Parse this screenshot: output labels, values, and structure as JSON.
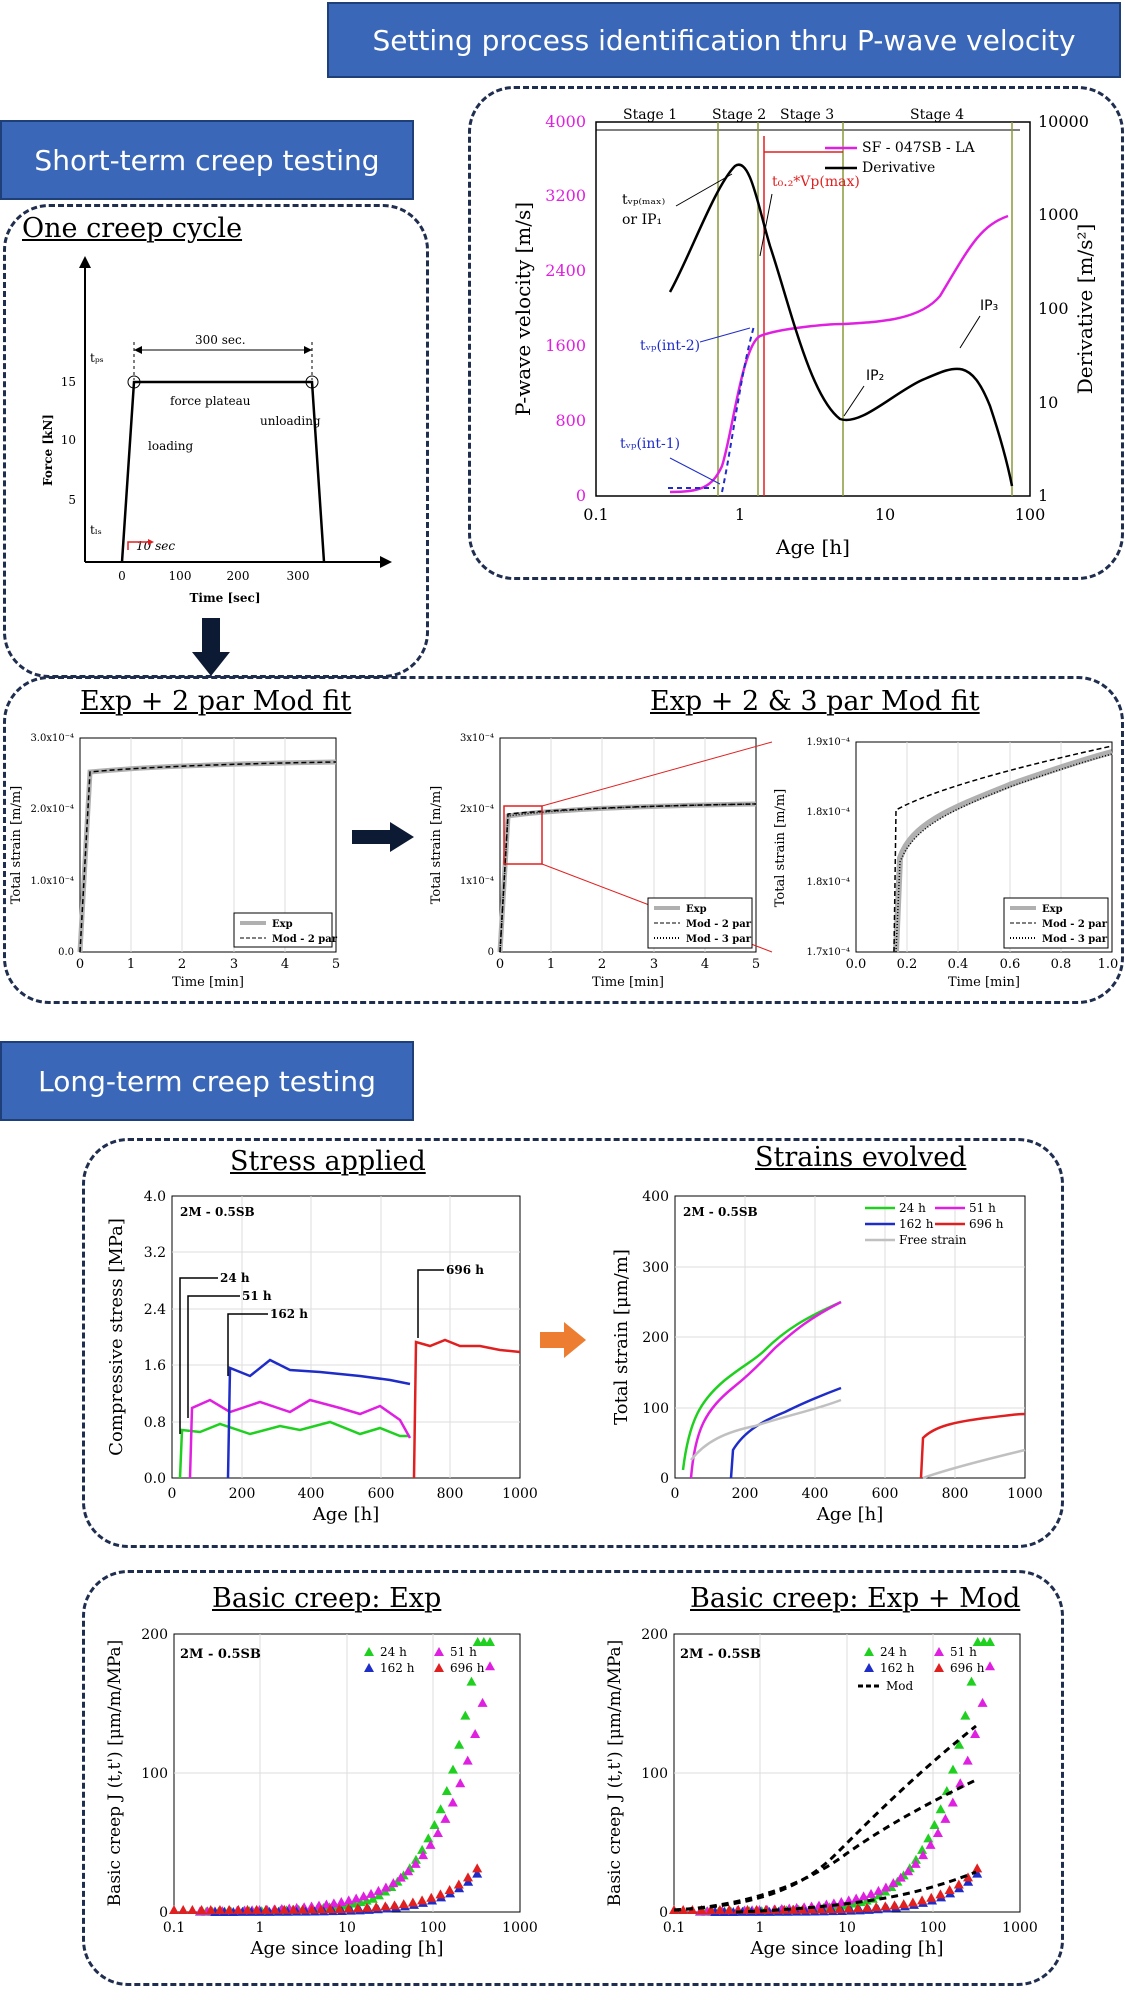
{
  "banners": {
    "top": "Setting process identification thru P-wave velocity",
    "short": "Short-term creep testing",
    "long": "Long-term creep testing"
  },
  "headings": {
    "one_cycle": "One creep cycle",
    "exp2": "Exp + 2 par Mod fit",
    "exp23": "Exp + 2 & 3 par Mod fit",
    "stress": "Stress applied",
    "strains": "Strains evolved",
    "bc_exp": "Basic creep: Exp",
    "bc_mod": "Basic creep: Exp + Mod"
  },
  "pwave": {
    "stages": [
      "Stage 1",
      "Stage 2",
      "Stage 3",
      "Stage 4"
    ],
    "ylabel_left": "P-wave velocity [m/s]",
    "ylabel_right": "Derivative [m/s²]",
    "xlabel": "Age [h]",
    "yticks": [
      "0",
      "800",
      "1600",
      "2400",
      "3200",
      "4000"
    ],
    "yticks_right": [
      "1",
      "10",
      "100",
      "1000",
      "10000"
    ],
    "xticks": [
      "0.1",
      "1",
      "10",
      "100"
    ],
    "legend": [
      "SF - 047SB - LA",
      "Derivative"
    ],
    "annotations": {
      "tvpmax": "tᵥₚ₍ₘₐₓ₎",
      "orip1": "or IP₁",
      "t02": "t₀.₂*Vp(max)",
      "tint2": "tᵥₚ(int-2)",
      "tint1": "tᵥₚ(int-1)",
      "ip2": "IP₂",
      "ip3": "IP₃"
    },
    "colors": {
      "vp": "#e020e0",
      "deriv": "#000000",
      "accent": "#1f2dc8",
      "red": "#e02020",
      "stage_line": "#8a9a3a"
    }
  },
  "cycle": {
    "ylabel": "Force [kN]",
    "xlabel": "Time [sec]",
    "yticks": [
      "5",
      "10",
      "15"
    ],
    "xticks": [
      "0",
      "100",
      "200",
      "300"
    ],
    "dur": "300 sec.",
    "plateau": "force plateau",
    "loading": "loading",
    "unloading": "unloading",
    "tps": "tₚₛ",
    "tls": "tₗₛ",
    "tensec": "10 sec"
  },
  "fit2": {
    "ylabel": "Total strain [m/m]",
    "xlabel": "Time [min]",
    "yticks": [
      "0.0",
      "1.0x10⁻⁴",
      "2.0x10⁻⁴",
      "3.0x10⁻⁴"
    ],
    "xticks": [
      "0",
      "1",
      "2",
      "3",
      "4",
      "5"
    ],
    "legend": [
      "Exp",
      "Mod - 2 par"
    ]
  },
  "fit3": {
    "ylabel": "Total strain [m/m]",
    "xlabel": "Time [min]",
    "yticks": [
      "0",
      "1x10⁻⁴",
      "2x10⁻⁴",
      "3x10⁻⁴"
    ],
    "xticks": [
      "0",
      "1",
      "2",
      "3",
      "4",
      "5"
    ],
    "legend": [
      "Exp",
      "Mod - 2 par",
      "Mod - 3 par"
    ]
  },
  "zoom": {
    "ylabel": "Total strain [m/m]",
    "xlabel": "Time [min]",
    "yticks": [
      "1.7x10⁻⁴",
      "1.8x10⁻⁴",
      "1.8x10⁻⁴",
      "1.9x10⁻⁴"
    ],
    "xticks": [
      "0.0",
      "0.2",
      "0.4",
      "0.6",
      "0.8",
      "1.0"
    ],
    "legend": [
      "Exp",
      "Mod - 2 par",
      "Mod - 3 par"
    ]
  },
  "stress": {
    "tag": "2M - 0.5SB",
    "ylabel": "Compressive stress [MPa]",
    "xlabel": "Age [h]",
    "yticks": [
      "0.0",
      "0.8",
      "1.6",
      "2.4",
      "3.2",
      "4.0"
    ],
    "xticks": [
      "0",
      "200",
      "400",
      "600",
      "800",
      "1000"
    ],
    "labels": [
      "24 h",
      "51 h",
      "162 h",
      "696 h"
    ]
  },
  "strain": {
    "tag": "2M - 0.5SB",
    "ylabel": "Total strain [μm/m]",
    "xlabel": "Age [h]",
    "yticks": [
      "0",
      "100",
      "200",
      "300",
      "400"
    ],
    "xticks": [
      "0",
      "200",
      "400",
      "600",
      "800",
      "1000"
    ],
    "legend": [
      "24 h",
      "51 h",
      "162 h",
      "696 h",
      "Free strain"
    ]
  },
  "basic_exp": {
    "tag": "2M - 0.5SB",
    "ylabel": "Basic creep J (t,t') [μm/m/MPa]",
    "xlabel": "Age since loading [h]",
    "yticks": [
      "0",
      "100",
      "200"
    ],
    "xticks": [
      "0.1",
      "1",
      "10",
      "100",
      "1000"
    ],
    "legend": [
      "24 h",
      "51 h",
      "162 h",
      "696 h"
    ]
  },
  "basic_mod": {
    "tag": "2M - 0.5SB",
    "ylabel": "Basic creep J (t,t') [μm/m/MPa]",
    "xlabel": "Age since loading [h]",
    "yticks": [
      "0",
      "100",
      "200"
    ],
    "xticks": [
      "0.1",
      "1",
      "10",
      "100",
      "1000"
    ],
    "legend": [
      "24 h",
      "51 h",
      "162 h",
      "696 h",
      "Mod"
    ]
  }
}
